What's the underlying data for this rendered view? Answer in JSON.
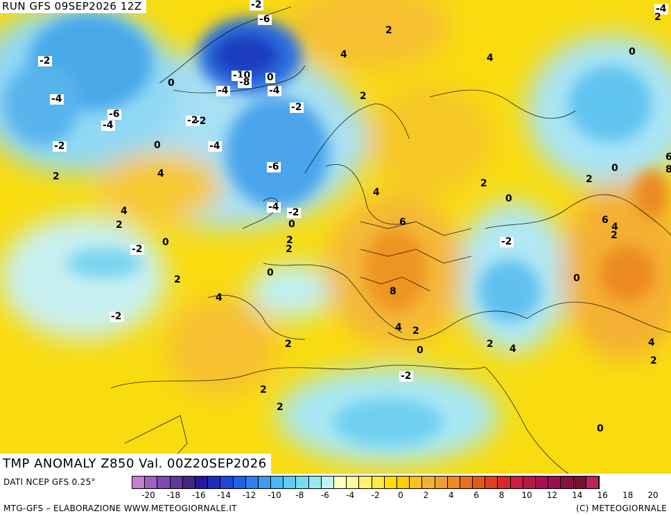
{
  "header": {
    "run_label": "RUN GFS 09SEP2026 12Z"
  },
  "map": {
    "variable_label": "TMP ANOMALY Z850 Val. 00Z20SEP2026",
    "contour_labels": [
      "-2",
      "-6",
      "-4",
      "-10",
      "-8",
      "0",
      "-4",
      "-4",
      "-2",
      "-6",
      "-4",
      "-2",
      "-4",
      "0",
      "-2",
      "-6",
      "-2",
      "-4",
      "2",
      "4",
      "0",
      "-4",
      "-2",
      "2",
      "4",
      "0",
      "2",
      "2",
      "-2",
      "0",
      "2",
      "0",
      "4",
      "-2",
      "2",
      "2",
      "2",
      "4",
      "6",
      "8",
      "4",
      "2",
      "0",
      "-2",
      "2",
      "2",
      "2",
      "4",
      "4",
      "4",
      "0",
      "2",
      "0",
      "-2",
      "0",
      "2",
      "6",
      "4",
      "2",
      "0",
      "4",
      "2",
      "6",
      "8",
      "0",
      "2",
      "-2",
      "4",
      "2"
    ],
    "colors": {
      "cold_deep": "#1e46c8",
      "cold": "#4aa8e8",
      "cool": "#8ee0f5",
      "neutral": "#fffec0",
      "warm": "#ffe800",
      "hot": "#f2a830",
      "very_hot": "#e6701e"
    }
  },
  "legend": {
    "source_label": "DATI NCEP GFS 0.25°",
    "colors": [
      "#c080d0",
      "#a060c0",
      "#8048b0",
      "#603898",
      "#402880",
      "#2418a0",
      "#1e2cc0",
      "#1e46d8",
      "#2060e8",
      "#2c7ef0",
      "#3c9cf0",
      "#4cb8f0",
      "#60ccf0",
      "#78dcf0",
      "#98e8f0",
      "#c0f4f4",
      "#fffec0",
      "#fff8a0",
      "#fff070",
      "#ffea40",
      "#ffe000",
      "#fdd000",
      "#f8c020",
      "#f4b030",
      "#f0a030",
      "#ec8828",
      "#e87020",
      "#e45818",
      "#e04020",
      "#d82828",
      "#c82040",
      "#b81848",
      "#a81050",
      "#981050",
      "#881040",
      "#781030",
      "#c02060"
    ],
    "tick_labels": [
      "-20",
      "-18",
      "-16",
      "-14",
      "-12",
      "-10",
      "-8",
      "-6",
      "-4",
      "-2",
      "0",
      "2",
      "4",
      "6",
      "8",
      "10",
      "12",
      "14",
      "16",
      "18",
      "20"
    ]
  },
  "footer": {
    "credit_left": "MTG-GFS – ELABORAZIONE WWW.METEOGIORNALE.IT",
    "credit_right": "(C) METEOGIORNALE"
  }
}
